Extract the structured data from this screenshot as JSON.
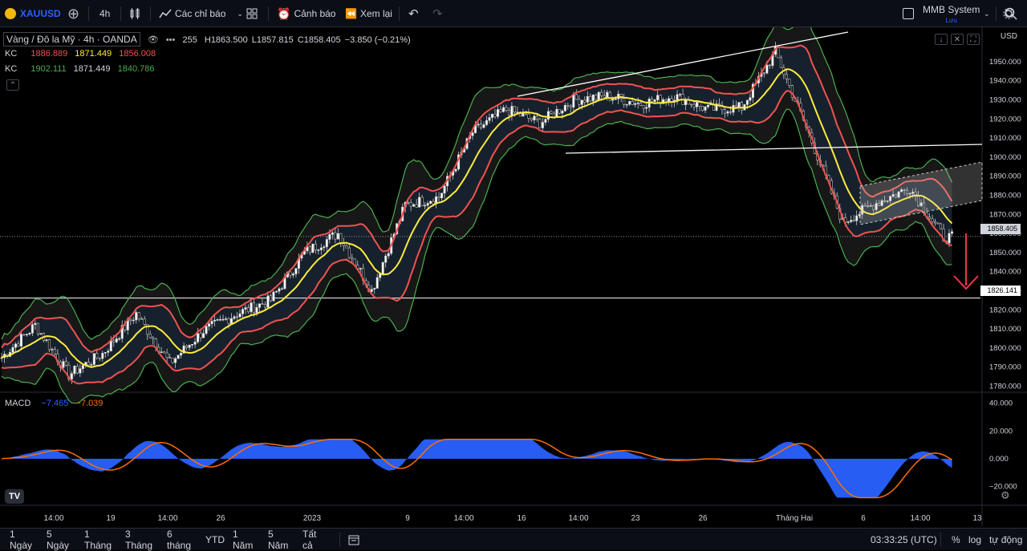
{
  "toolbar": {
    "symbol": "XAUUSD",
    "interval": "4h",
    "indicators_label": "Các chỉ báo",
    "alerts_label": "Cảnh báo",
    "replay_label": "Xem lại",
    "layout_name": "MMB System",
    "layout_sub": "Lưu"
  },
  "legend": {
    "title": "Vàng / Đô la Mỹ · 4h · OANDA",
    "ohlc": {
      "o_tail": "255",
      "h": "H1863.500",
      "l": "L1857.815",
      "c": "C1858.405",
      "chg": "−3.850 (−0.21%)"
    },
    "kc1": {
      "name": "KC",
      "upper": "1886.889",
      "mid": "1871.449",
      "lower": "1856.008"
    },
    "kc2": {
      "name": "KC",
      "upper": "1902.111",
      "mid": "1871.449",
      "lower": "1840.786"
    }
  },
  "macd": {
    "name": "MACD",
    "macd_val": "−7.465",
    "signal_val": "−7.039"
  },
  "price_axis": {
    "currency": "USD",
    "ticks": [
      "1950.000",
      "1940.000",
      "1930.000",
      "1920.000",
      "1910.000",
      "1900.000",
      "1890.000",
      "1880.000",
      "1870.000",
      "1860.000",
      "1850.000",
      "1840.000",
      "1830.000",
      "1820.000",
      "1810.000",
      "1800.000",
      "1790.000",
      "1780.000"
    ],
    "last_price": "1858.405",
    "hline_price": "1826.141"
  },
  "macd_axis": {
    "ticks": [
      "40.000",
      "20.000",
      "0.000",
      "−20.000"
    ]
  },
  "time_axis": {
    "labels": [
      "14:00",
      "19",
      "14:00",
      "26",
      "2023",
      "9",
      "14:00",
      "16",
      "14:00",
      "23",
      "26",
      "Tháng Hai",
      "6",
      "14:00",
      "13"
    ]
  },
  "bottom": {
    "ranges": [
      "1 Ngày",
      "5 Ngày",
      "1 Tháng",
      "3 Tháng",
      "6 tháng",
      "YTD",
      "1 Năm",
      "5 Năm",
      "Tất cả"
    ],
    "time": "03:33:25 (UTC)",
    "pct": "%",
    "log": "log",
    "auto": "tự động"
  },
  "colors": {
    "upper_band": "#ef5350",
    "mid_band": "#ffeb3b",
    "outer_band": "#4caf50",
    "macd": "#2962ff",
    "signal": "#ff6d00",
    "accent": "#2962ff"
  },
  "chart_data": {
    "type": "line",
    "title": "Vàng / Đô la Mỹ · 4h · OANDA",
    "ylim": [
      1775,
      1958
    ],
    "anchors_x": [
      0,
      12,
      24,
      36,
      48,
      60,
      72,
      84,
      96,
      108,
      120,
      132,
      144,
      156,
      168,
      180,
      192,
      204,
      216,
      228,
      240,
      252
    ],
    "anchors_close": [
      1795,
      1812,
      1786,
      1797,
      1818,
      1792,
      1809,
      1818,
      1825,
      1850,
      1860,
      1830,
      1875,
      1879,
      1913,
      1925,
      1918,
      1930,
      1932,
      1928,
      1932,
      1925
    ],
    "anchors_x_tail": [
      264,
      276,
      288,
      300,
      312,
      324,
      336
    ],
    "anchors_close_tail": [
      1926,
      1955,
      1912,
      1866,
      1876,
      1884,
      1858
    ],
    "macd_ylim": [
      -30,
      45
    ]
  }
}
